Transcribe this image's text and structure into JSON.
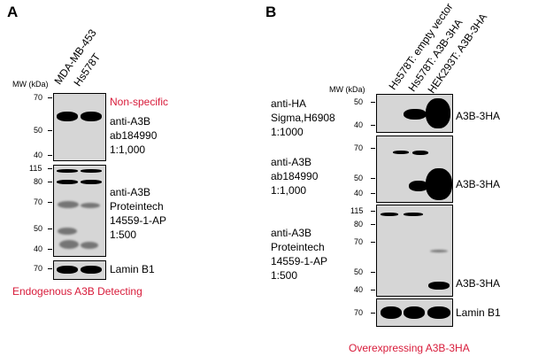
{
  "panel_a": {
    "letter": "A",
    "mw_header": "MW (kDa)",
    "lanes": [
      "MDA-MB-453",
      "Hs578T"
    ],
    "blot1": {
      "markers": [
        "70",
        "50",
        "40"
      ],
      "note": "Non-specific",
      "antibody": [
        "anti-A3B",
        "ab184990",
        "1:1,000"
      ]
    },
    "blot2": {
      "markers": [
        "115",
        "80",
        "70",
        "50",
        "40"
      ],
      "antibody": [
        "anti-A3B",
        "Proteintech",
        "14559-1-AP",
        "1:500"
      ]
    },
    "blot3": {
      "markers": [
        "70"
      ],
      "label": "Lamin B1"
    },
    "caption": "Endogenous A3B Detecting"
  },
  "panel_b": {
    "letter": "B",
    "mw_header": "MW (kDa)",
    "lanes": [
      "Hs578T: empty vector",
      "Hs578T: A3B-3HA",
      "HEK293T: A3B-3HA"
    ],
    "blot1": {
      "markers": [
        "50",
        "40"
      ],
      "antibody": [
        "anti-HA",
        "Sigma,H6908",
        "1:1000"
      ],
      "band_label": "A3B-3HA"
    },
    "blot2": {
      "markers": [
        "70",
        "50",
        "40"
      ],
      "antibody": [
        "anti-A3B",
        "ab184990",
        "1:1,000"
      ],
      "band_label": "A3B-3HA"
    },
    "blot3": {
      "markers": [
        "115",
        "80",
        "70",
        "50",
        "40"
      ],
      "antibody": [
        "anti-A3B",
        "Proteintech",
        "14559-1-AP",
        "1:500"
      ],
      "band_label": "A3B-3HA"
    },
    "blot4": {
      "markers": [
        "70"
      ],
      "label": "Lamin B1"
    },
    "caption": "Overexpressing A3B-3HA"
  }
}
